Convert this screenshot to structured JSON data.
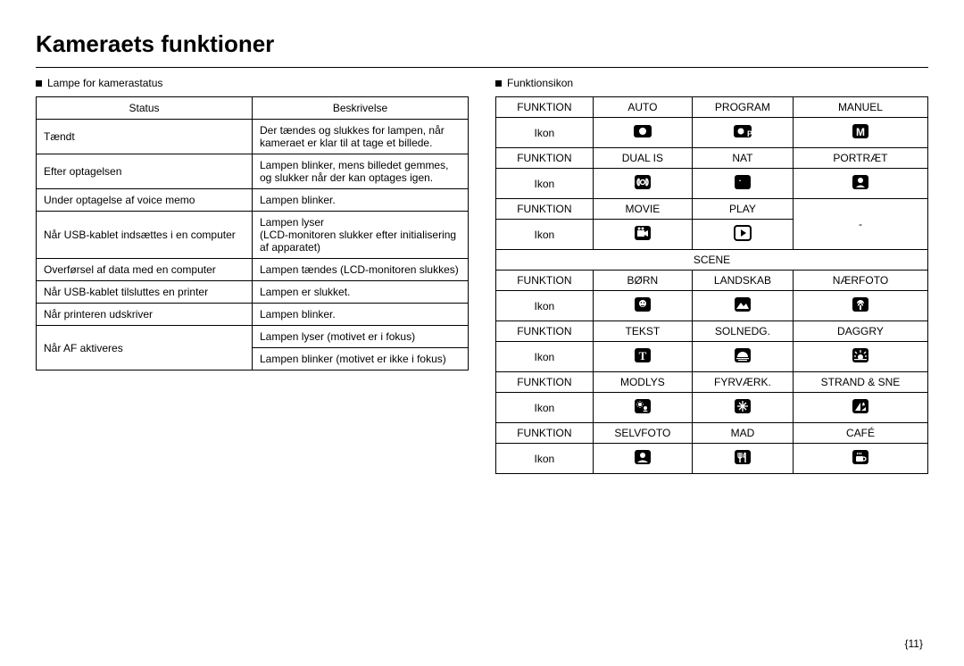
{
  "title": "Kameraets funktioner",
  "pagenum": "{11}",
  "left": {
    "section": "Lampe for kamerastatus",
    "head": {
      "c1": "Status",
      "c2": "Beskrivelse"
    },
    "rows": [
      {
        "c1": "Tændt",
        "c2": "Der tændes og slukkes for lampen, når kameraet er klar til at tage et billede."
      },
      {
        "c1": "Efter optagelsen",
        "c2": "Lampen blinker, mens billedet gemmes, og slukker når der kan optages igen."
      },
      {
        "c1": "Under optagelse af voice memo",
        "c2": "Lampen blinker."
      },
      {
        "c1": "Når USB-kablet indsættes i en computer",
        "c2": "Lampen lyser\n(LCD-monitoren slukker efter initialisering af apparatet)"
      },
      {
        "c1": "Overførsel af data med en computer",
        "c2": "Lampen tændes (LCD-monitoren slukkes)"
      },
      {
        "c1": "Når USB-kablet tilsluttes en printer",
        "c2": "Lampen er slukket."
      },
      {
        "c1": "Når printeren udskriver",
        "c2": "Lampen blinker."
      },
      {
        "c1": "Når AF aktiveres",
        "c2a": "Lampen lyser (motivet er i fokus)",
        "c2b": "Lampen blinker (motivet er ikke i fokus)"
      }
    ]
  },
  "right": {
    "section": "Funktionsikon",
    "labels": {
      "funktion": "FUNKTION",
      "ikon": "Ikon",
      "scene": "SCENE"
    },
    "group1": [
      {
        "f": [
          "AUTO",
          "PROGRAM",
          "MANUEL"
        ],
        "i": [
          "auto",
          "program",
          "manual"
        ]
      },
      {
        "f": [
          "DUAL IS",
          "NAT",
          "PORTRÆT"
        ],
        "i": [
          "dualis",
          "night",
          "portrait"
        ]
      },
      {
        "f": [
          "MOVIE",
          "PLAY",
          "-"
        ],
        "i": [
          "movie",
          "play",
          null
        ]
      }
    ],
    "group2": [
      {
        "f": [
          "BØRN",
          "LANDSKAB",
          "NÆRFOTO"
        ],
        "i": [
          "children",
          "landscape",
          "closeup"
        ]
      },
      {
        "f": [
          "TEKST",
          "SOLNEDG.",
          "DAGGRY"
        ],
        "i": [
          "text",
          "sunset",
          "dawn"
        ]
      },
      {
        "f": [
          "MODLYS",
          "FYRVÆRK.",
          "STRAND & SNE"
        ],
        "i": [
          "backlight",
          "firework",
          "beach"
        ]
      },
      {
        "f": [
          "SELVFOTO",
          "MAD",
          "CAFÉ"
        ],
        "i": [
          "selfshot",
          "food",
          "cafe"
        ]
      }
    ]
  },
  "icons": {
    "auto": "<rect x='2' y='4' width='20' height='14' rx='3' fill='black'/><circle cx='12' cy='11' r='4' fill='white'/>",
    "program": "<rect x='2' y='4' width='20' height='14' rx='3' fill='black'/><circle cx='10' cy='11' r='3.5' fill='white'/><text x='17' y='17' font-size='9' fill='white' font-family='Arial' font-weight='bold'>P</text>",
    "manual": "<rect x='3' y='3' width='18' height='16' rx='3' fill='black'/><text x='12' y='16' font-size='12' fill='white' font-family='Arial' font-weight='bold' text-anchor='middle'>M</text>",
    "dualis": "<rect x='3' y='3' width='18' height='16' rx='3' fill='black'/><path d='M8 7 L8 15 M8 7 Q6 8 6 11 Q6 14 8 15 M16 7 L16 15 M16 7 Q18 8 18 11 Q18 14 16 15' stroke='white' stroke-width='1.5' fill='none'/><circle cx='12' cy='11' r='2.5' fill='none' stroke='white' stroke-width='1.5'/>",
    "night": "<rect x='3' y='3' width='18' height='16' rx='3' fill='black'/><path d='M14 6 A5 5 0 1 0 14 16 A4 4 0 1 1 14 6 Z' fill='white'/><path d='M9 8 L10 10 L8 10 Z' fill='white'/>",
    "portrait": "<rect x='3' y='3' width='18' height='16' rx='3' fill='black'/><circle cx='12' cy='9' r='3' fill='white'/><path d='M7 17 Q12 12 17 17 Z' fill='white'/>",
    "movie": "<rect x='3' y='3' width='18' height='16' rx='3' fill='black'/><rect x='6' y='8' width='8' height='7' fill='white'/><path d='M14 10 L18 8 L18 15 L14 13 Z' fill='white'/><circle cx='8' cy='6' r='1.5' fill='white'/><circle cx='12' cy='6' r='1.5' fill='white'/>",
    "play": "<rect x='3' y='3' width='18' height='16' rx='3' fill='none' stroke='black' stroke-width='2'/><path d='M10 7 L16 11 L10 15 Z' fill='black'/>",
    "children": "<rect x='3' y='3' width='18' height='16' rx='3' fill='black'/><circle cx='12' cy='10' r='4' fill='white'/><circle cx='10.5' cy='9' r='0.8' fill='black'/><circle cx='13.5' cy='9' r='0.8' fill='black'/><path d='M10 12 Q12 13.5 14 12' stroke='black' stroke-width='1' fill='none'/>",
    "landscape": "<rect x='3' y='3' width='18' height='16' rx='3' fill='black'/><path d='M5 16 L10 9 L13 13 L16 10 L19 16 Z' fill='white'/>",
    "closeup": "<rect x='3' y='3' width='18' height='16' rx='3' fill='black'/><path d='M12 6 Q8 6 8 11 Q8 9 12 9 Q16 9 16 11 Q16 6 12 6 Z M12 9 Q9 9 9 13 Q12 11 12 9 Q12 11 15 13 Q15 9 12 9' fill='white'/><rect x='11' y='12' width='2' height='5' fill='white'/>",
    "text": "<rect x='3' y='3' width='18' height='16' rx='3' fill='black'/><text x='12' y='16' font-size='13' fill='white' font-family='Georgia' font-weight='bold' text-anchor='middle'>T</text>",
    "sunset": "<rect x='3' y='3' width='18' height='16' rx='3' fill='black'/><path d='M6 13 A6 6 0 0 1 18 13 Z' fill='white'/><rect x='5' y='14' width='14' height='1.2' fill='white'/><rect x='7' y='16' width='10' height='1.2' fill='white'/>",
    "dawn": "<rect x='3' y='3' width='18' height='16' rx='3' fill='black'/><circle cx='12' cy='13' r='3' fill='white'/><g stroke='white' stroke-width='1.3'><line x1='12' y1='5' x2='12' y2='8'/><line x1='6' y1='7' x2='8' y2='9'/><line x1='18' y1='7' x2='16' y2='9'/><line x1='5' y1='12' x2='7' y2='12'/><line x1='19' y1='12' x2='17' y2='12'/></g><rect x='5' y='15' width='14' height='1.2' fill='white'/>",
    "backlight": "<rect x='3' y='3' width='18' height='16' rx='3' fill='black'/><circle cx='9' cy='9' r='2' fill='white'/><g stroke='white' stroke-width='1'><line x1='9' y1='5' x2='9' y2='6'/><line x1='9' y1='12' x2='9' y2='13'/><line x1='5' y1='9' x2='6' y2='9'/><line x1='12' y1='9' x2='13' y2='9'/><line x1='6.5' y1='6.5' x2='7.2' y2='7.2'/><line x1='10.8' y1='10.8' x2='11.5' y2='11.5'/><line x1='11.5' y1='6.5' x2='10.8' y2='7.2'/><line x1='7.2' y1='10.8' x2='6.5' y2='11.5'/></g><circle cx='15' cy='13' r='2' fill='white'/><path d='M12 17 Q15 14 18 17 Z' fill='white'/>",
    "firework": "<rect x='3' y='3' width='18' height='16' rx='3' fill='black'/><g stroke='white' stroke-width='1.3'><line x1='12' y1='5' x2='12' y2='17'/><line x1='6' y1='11' x2='18' y2='11'/><line x1='8' y1='7' x2='16' y2='15'/><line x1='16' y1='7' x2='8' y2='15'/></g><circle cx='12' cy='11' r='1.5' fill='white'/>",
    "beach": "<rect x='3' y='3' width='18' height='16' rx='3' fill='black'/><path d='M6 16 L12 7 L12 16 Z' fill='white'/><path d='M13 16 L18 12 L18 16 Z' fill='white'/><path d='M14 9 L16 7 L15 10 L17 9' stroke='white' stroke-width='1' fill='none'/>",
    "selfshot": "<rect x='3' y='3' width='18' height='16' rx='3' fill='black'/><circle cx='12' cy='9' r='3' fill='white'/><path d='M6 17 Q12 12 18 17 Z' fill='white'/>",
    "food": "<rect x='3' y='3' width='18' height='16' rx='3' fill='black'/><line x1='9' y1='6' x2='9' y2='17' stroke='white' stroke-width='1.5'/><path d='M7 6 L7 10 M11 6 L11 10 M7 10 Q7 12 9 12 Q11 12 11 10' stroke='white' stroke-width='1.2' fill='none'/><line x1='15' y1='6' x2='15' y2='17' stroke='white' stroke-width='1.5'/><path d='M15 6 Q13 7 13 11 L15 11' stroke='white' stroke-width='1.2' fill='none'/>",
    "cafe": "<rect x='3' y='3' width='18' height='16' rx='3' fill='black'/><rect x='7' y='10' width='8' height='6' rx='1' fill='white'/><path d='M15 11 Q18 11 18 13 Q18 15 15 15' stroke='white' stroke-width='1.3' fill='none'/><path d='M9 6 Q8 7 9 8 M11 6 Q10 7 11 8 M13 6 Q12 7 13 8' stroke='white' stroke-width='1' fill='none'/>"
  }
}
